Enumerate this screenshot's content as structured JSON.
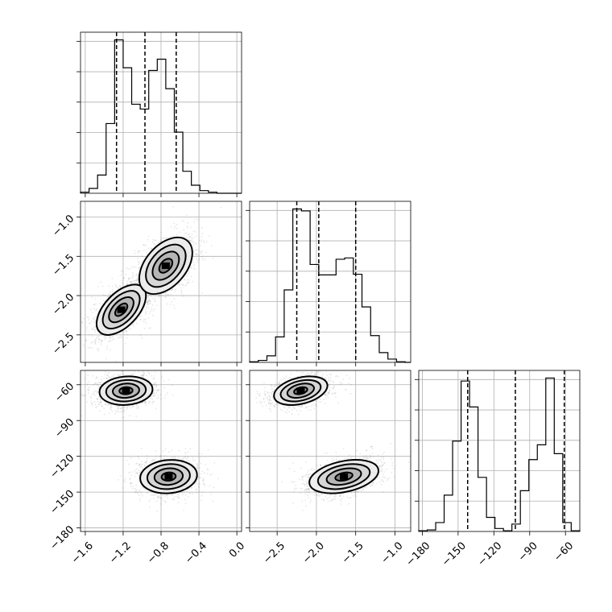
{
  "chart_data": {
    "type": "corner",
    "grid": true,
    "parameters": [
      {
        "index": 0,
        "range": [
          -1.65,
          0.05
        ],
        "ticks": [
          -1.6,
          -1.2,
          -0.8,
          -0.4,
          0.0
        ],
        "tick_labels": [
          "−1.6",
          "−1.2",
          "−0.8",
          "−0.4",
          "0.0"
        ],
        "quantiles": [
          -1.27,
          -0.97,
          -0.64
        ],
        "histogram": {
          "bin_edges": [
            -1.65,
            -1.56,
            -1.47,
            -1.38,
            -1.29,
            -1.2,
            -1.11,
            -1.02,
            -0.93,
            -0.84,
            -0.75,
            -0.66,
            -0.57,
            -0.48,
            -0.39,
            -0.3,
            -0.21,
            -0.12,
            -0.03,
            0.05
          ],
          "counts": [
            2,
            9,
            34,
            130,
            286,
            234,
            166,
            157,
            229,
            250,
            195,
            114,
            41,
            15,
            5,
            2,
            0,
            0,
            0
          ]
        }
      },
      {
        "index": 1,
        "range": [
          -2.85,
          -0.8
        ],
        "ticks": [
          -2.5,
          -2.0,
          -1.5,
          -1.0
        ],
        "tick_labels": [
          "−2.5",
          "−2.0",
          "−1.5",
          "−1.0"
        ],
        "quantiles": [
          -2.25,
          -1.97,
          -1.5
        ],
        "histogram": {
          "bin_edges": [
            -2.85,
            -2.74,
            -2.63,
            -2.52,
            -2.41,
            -2.3,
            -2.19,
            -2.08,
            -1.97,
            -1.86,
            -1.75,
            -1.64,
            -1.53,
            -1.42,
            -1.31,
            -1.2,
            -1.09,
            -0.98,
            -0.87,
            -0.8
          ],
          "counts": [
            1,
            3,
            10,
            39,
            111,
            235,
            232,
            150,
            134,
            134,
            158,
            160,
            135,
            85,
            41,
            15,
            5,
            1,
            0
          ]
        }
      },
      {
        "index": 2,
        "range": [
          -183,
          -48
        ],
        "ticks": [
          -180,
          -150,
          -120,
          -90,
          -60
        ],
        "tick_labels": [
          "−180",
          "−150",
          "−120",
          "−90",
          "−60"
        ],
        "quantiles": [
          -142,
          -102,
          -61
        ],
        "histogram": {
          "bin_edges": [
            -183,
            -175.9,
            -168.8,
            -161.7,
            -154.6,
            -147.5,
            -140.4,
            -133.3,
            -126.2,
            -119.1,
            -112.0,
            -104.9,
            -97.8,
            -90.7,
            -83.6,
            -76.5,
            -69.4,
            -62.3,
            -55.2,
            -48
          ],
          "counts": [
            1,
            2,
            12,
            49,
            122,
            203,
            168,
            73,
            19,
            4,
            1,
            10,
            55,
            97,
            117,
            207,
            105,
            12,
            1
          ]
        }
      }
    ],
    "pairs": [
      {
        "x_param": 0,
        "y_param": 1,
        "y_ticks": [
          -1.0,
          -1.5,
          -2.0,
          -2.5
        ],
        "y_tick_labels": [
          "−1.0",
          "−1.5",
          "−2.0",
          "−2.5"
        ],
        "modes": [
          {
            "mean": [
              -1.22,
              -2.18
            ],
            "sd": [
              0.13,
              0.16
            ],
            "corr": 0.55,
            "weight": 0.5
          },
          {
            "mean": [
              -0.75,
              -1.62
            ],
            "sd": [
              0.14,
              0.18
            ],
            "corr": 0.45,
            "weight": 0.5
          }
        ]
      },
      {
        "x_param": 0,
        "y_param": 2,
        "y_ticks": [
          -60,
          -90,
          -120,
          -150,
          -180
        ],
        "y_tick_labels": [
          "−60",
          "−90",
          "−120",
          "−150",
          "−180"
        ],
        "modes": [
          {
            "mean": [
              -1.17,
              -65
            ],
            "sd": [
              0.14,
              6
            ],
            "corr": 0.1,
            "weight": 0.5
          },
          {
            "mean": [
              -0.72,
              -137
            ],
            "sd": [
              0.15,
              7
            ],
            "corr": 0.1,
            "weight": 0.5
          }
        ]
      },
      {
        "x_param": 1,
        "y_param": 2,
        "y_ticks": [],
        "y_tick_labels": [],
        "modes": [
          {
            "mean": [
              -2.2,
              -65
            ],
            "sd": [
              0.17,
              6
            ],
            "corr": 0.35,
            "weight": 0.5
          },
          {
            "mean": [
              -1.65,
              -137
            ],
            "sd": [
              0.22,
              7
            ],
            "corr": 0.35,
            "weight": 0.5
          }
        ]
      }
    ],
    "contour_levels_sigma": [
      0.5,
      1.0,
      1.5,
      2.0
    ],
    "scatter_samples_per_panel": 2600
  }
}
